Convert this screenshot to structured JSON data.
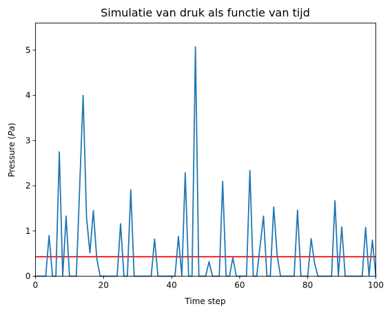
{
  "chart_data": {
    "type": "line",
    "title": "Simulatie van druk als functie van tijd",
    "xlabel": "Time step",
    "ylabel_prefix": "Pressure (",
    "ylabel_unit": "Pa",
    "ylabel_suffix": ")",
    "xlim": [
      0,
      100
    ],
    "ylim": [
      0,
      5.6
    ],
    "xticks": [
      0,
      20,
      40,
      60,
      80,
      100
    ],
    "yticks": [
      0,
      1,
      2,
      3,
      4,
      5
    ],
    "grid": false,
    "series": [
      {
        "color": "#1f77b4",
        "x": [
          0,
          1,
          2,
          3,
          4,
          5,
          6,
          7,
          8,
          9,
          10,
          11,
          12,
          13,
          14,
          15,
          16,
          17,
          18,
          19,
          20,
          21,
          22,
          23,
          24,
          25,
          26,
          27,
          28,
          29,
          30,
          31,
          32,
          33,
          34,
          35,
          36,
          37,
          38,
          39,
          40,
          41,
          42,
          43,
          44,
          45,
          46,
          47,
          48,
          49,
          50,
          51,
          52,
          53,
          54,
          55,
          56,
          57,
          58,
          59,
          60,
          61,
          62,
          63,
          64,
          65,
          66,
          67,
          68,
          69,
          70,
          71,
          72,
          73,
          74,
          75,
          76,
          77,
          78,
          79,
          80,
          81,
          82,
          83,
          84,
          85,
          86,
          87,
          88,
          89,
          90,
          91,
          92,
          93,
          94,
          95,
          96,
          97,
          98,
          99,
          100
        ],
        "y": [
          0,
          0,
          0,
          0,
          0.9,
          0,
          0,
          2.75,
          0,
          1.33,
          0,
          0,
          0,
          2.0,
          4.0,
          1.3,
          0.52,
          1.45,
          0.4,
          0,
          0,
          0,
          0,
          0,
          0,
          1.16,
          0,
          0,
          1.91,
          0,
          0,
          0,
          0,
          0,
          0,
          0.82,
          0,
          0,
          0,
          0,
          0,
          0,
          0.88,
          0,
          2.29,
          0,
          0,
          5.07,
          0,
          0,
          0,
          0.32,
          0,
          0,
          0,
          2.1,
          0,
          0,
          0.41,
          0,
          0,
          0,
          0,
          2.34,
          0,
          0,
          0.67,
          1.33,
          0,
          0,
          1.53,
          0.47,
          0,
          0,
          0,
          0,
          0,
          1.46,
          0,
          0,
          0,
          0.83,
          0.29,
          0,
          0,
          0,
          0,
          0,
          1.67,
          0,
          1.09,
          0,
          0,
          0,
          0,
          0,
          0,
          1.08,
          0,
          0.8,
          0
        ]
      }
    ],
    "hlines": [
      {
        "y": 0.43,
        "color": "#ff0000"
      }
    ]
  }
}
